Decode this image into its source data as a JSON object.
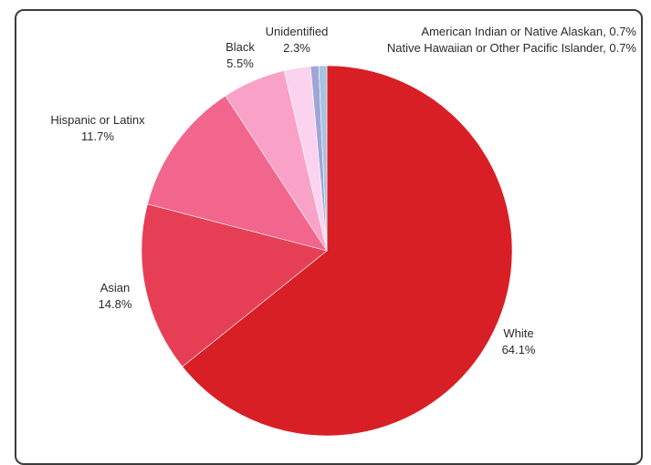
{
  "chart_data": {
    "type": "pie",
    "title": "",
    "slices": [
      {
        "label": "White",
        "value": 64.1,
        "value_label": "64.1%",
        "color": "#d81f26"
      },
      {
        "label": "Asian",
        "value": 14.8,
        "value_label": "14.8%",
        "color": "#e63f55"
      },
      {
        "label": "Hispanic or Latinx",
        "value": 11.7,
        "value_label": "11.7%",
        "color": "#f2658d"
      },
      {
        "label": "Black",
        "value": 5.5,
        "value_label": "5.5%",
        "color": "#f9a1c6"
      },
      {
        "label": "Unidentified",
        "value": 2.3,
        "value_label": "2.3%",
        "color": "#fcd3ef"
      },
      {
        "label": "American Indian or Native Alaskan",
        "value": 0.7,
        "value_label": "0.7%",
        "color": "#9fa6d6"
      },
      {
        "label": "Native Hawaiian or Other Pacific Islander",
        "value": 0.7,
        "value_label": "0.7%",
        "color": "#a8c2e2"
      }
    ],
    "start_angle_deg": 0,
    "direction": "clockwise",
    "legend": "none"
  }
}
